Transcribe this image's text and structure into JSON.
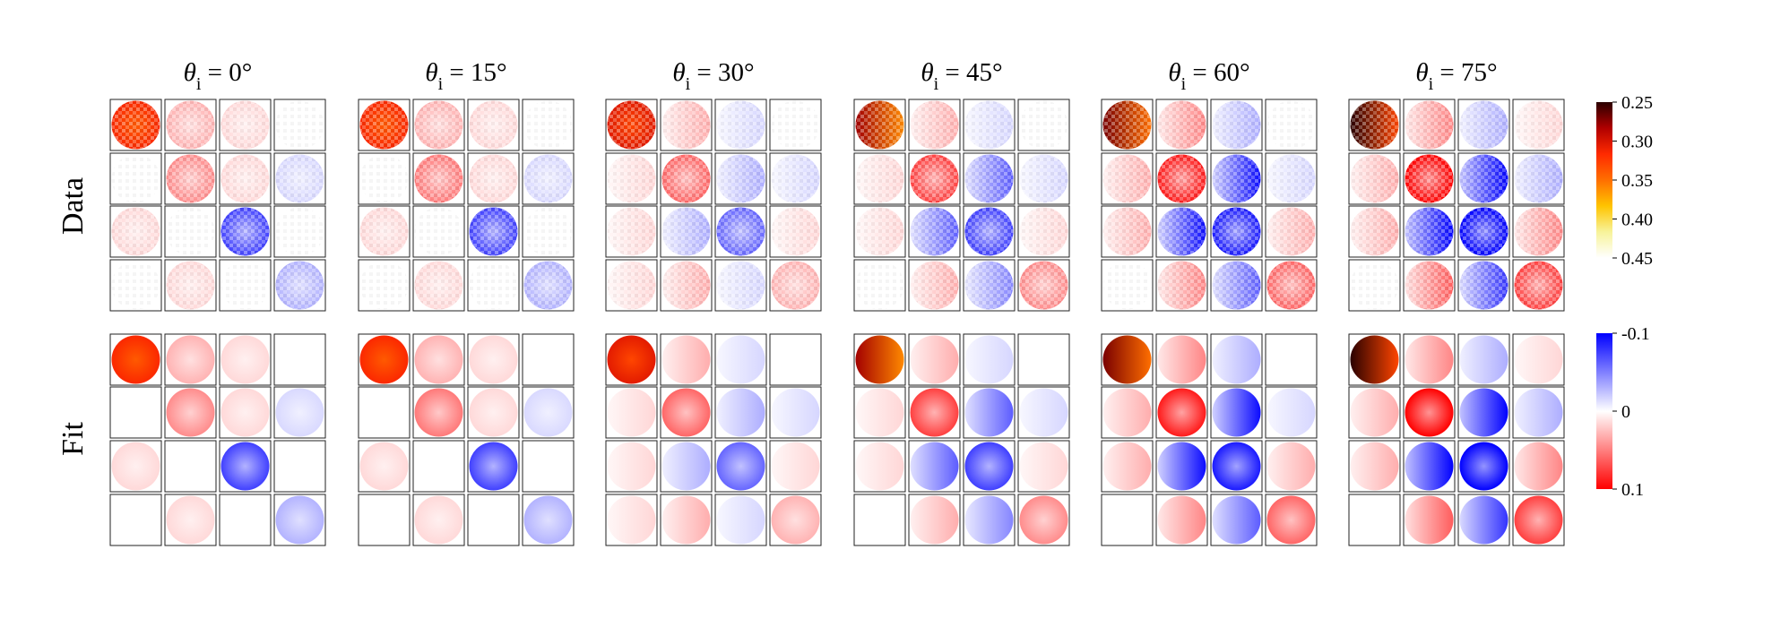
{
  "chart_data": {
    "type": "heatmap",
    "panels": [
      {
        "theta_symbol": "θ",
        "theta_subscript": "i",
        "angle_text": " = 0°",
        "angle_deg": 0
      },
      {
        "theta_symbol": "θ",
        "theta_subscript": "i",
        "angle_text": " = 15°",
        "angle_deg": 15
      },
      {
        "theta_symbol": "θ",
        "theta_subscript": "i",
        "angle_text": " = 30°",
        "angle_deg": 30
      },
      {
        "theta_symbol": "θ",
        "theta_subscript": "i",
        "angle_text": " = 45°",
        "angle_deg": 45
      },
      {
        "theta_symbol": "θ",
        "theta_subscript": "i",
        "angle_text": " = 60°",
        "angle_deg": 60
      },
      {
        "theta_symbol": "θ",
        "theta_subscript": "i",
        "angle_text": " = 75°",
        "angle_deg": 75
      }
    ],
    "row_labels": [
      "Data",
      "Fit"
    ],
    "matrix_size": [
      4,
      4
    ],
    "colorbars": [
      {
        "name": "m00 scale",
        "ticks": [
          "0.25",
          "0.30",
          "0.35",
          "0.40",
          "0.45"
        ],
        "range": [
          0.25,
          0.45
        ],
        "colors": [
          "#2a0000",
          "#b00000",
          "#ff2a00",
          "#ff6f00",
          "#ffc400",
          "#f7f39a",
          "#ffffff"
        ]
      },
      {
        "name": "element scale",
        "ticks": [
          "-0.1",
          "0",
          "0.1"
        ],
        "range": [
          -0.1,
          0.1
        ],
        "colors": [
          "#0000ff",
          "#ffffff",
          "#ff0000"
        ]
      }
    ],
    "approx_element_values": {
      "0": [
        [
          0.32,
          0.02,
          0.01,
          0.0
        ],
        [
          0.0,
          0.03,
          0.01,
          -0.01
        ],
        [
          0.01,
          0.0,
          -0.05,
          0.0
        ],
        [
          0.0,
          0.01,
          0.0,
          -0.02
        ]
      ],
      "15": [
        [
          0.32,
          0.02,
          0.01,
          0.0
        ],
        [
          0.0,
          0.035,
          0.01,
          -0.01
        ],
        [
          0.01,
          0.0,
          -0.05,
          0.0
        ],
        [
          0.0,
          0.01,
          0.0,
          -0.02
        ]
      ],
      "30": [
        [
          0.31,
          0.02,
          -0.01,
          0.0
        ],
        [
          0.01,
          0.04,
          -0.02,
          -0.01
        ],
        [
          0.01,
          -0.02,
          -0.04,
          0.01
        ],
        [
          0.01,
          0.02,
          -0.01,
          0.02
        ]
      ],
      "45": [
        [
          0.3,
          0.02,
          -0.01,
          0.0
        ],
        [
          0.01,
          0.05,
          -0.04,
          -0.01
        ],
        [
          0.01,
          -0.04,
          -0.05,
          0.01
        ],
        [
          0.0,
          0.02,
          -0.03,
          0.03
        ]
      ],
      "60": [
        [
          0.29,
          0.03,
          -0.02,
          0.0
        ],
        [
          0.02,
          0.06,
          -0.06,
          -0.01
        ],
        [
          0.02,
          -0.06,
          -0.06,
          0.02
        ],
        [
          0.0,
          0.03,
          -0.04,
          0.04
        ]
      ],
      "75": [
        [
          0.27,
          0.03,
          -0.02,
          0.01
        ],
        [
          0.02,
          0.07,
          -0.08,
          -0.02
        ],
        [
          0.02,
          -0.08,
          -0.07,
          0.03
        ],
        [
          0.0,
          0.04,
          -0.05,
          0.05
        ]
      ]
    }
  }
}
